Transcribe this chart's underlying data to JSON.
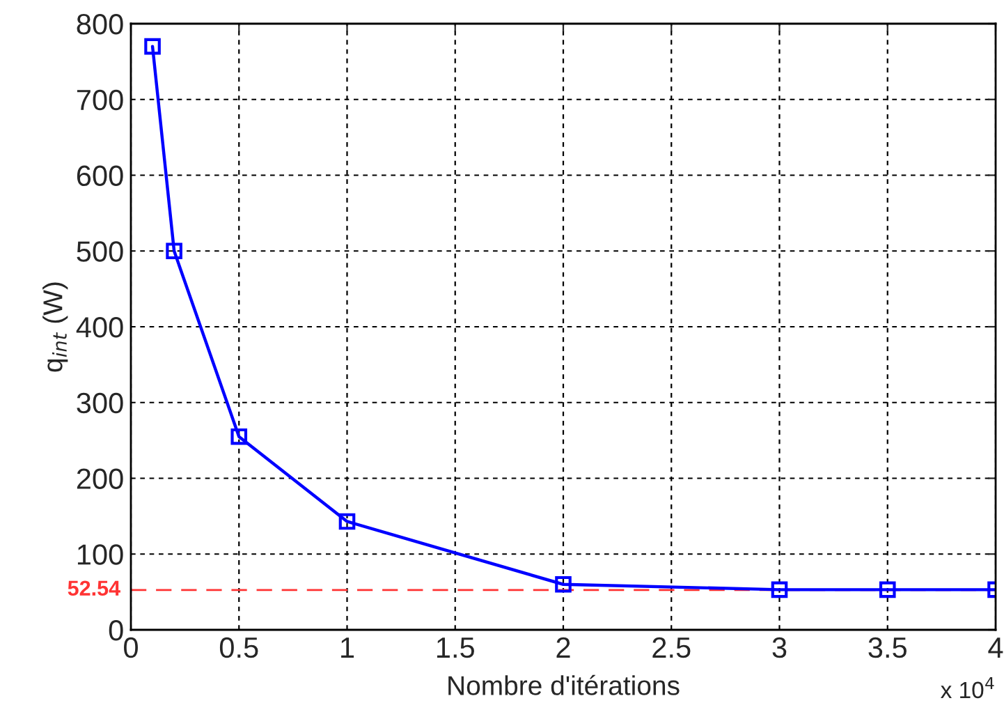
{
  "chart_data": {
    "type": "line",
    "xlabel": "Nombre d'itérations",
    "ylabel": "q$_{int}$ (W)",
    "x": [
      0.1,
      0.2,
      0.5,
      1,
      2,
      3,
      3.5,
      4
    ],
    "series": [
      {
        "color": "#0000ff",
        "values": [
          770,
          500,
          255,
          143,
          60,
          53,
          53,
          53
        ]
      }
    ],
    "xlim": [
      0,
      4
    ],
    "xticks": [
      0,
      0.5,
      1,
      1.5,
      2,
      2.5,
      3,
      3.5,
      4
    ],
    "ylim": [
      0,
      800
    ],
    "yticks": [
      0,
      100,
      200,
      300,
      400,
      500,
      600,
      700,
      800
    ],
    "ref_lines": [
      {
        "axis": "y",
        "value": 52.54,
        "label": "52.54",
        "color": "#ff3333",
        "line_style": "dashed"
      }
    ],
    "annotations": [
      "x 10$^{4}$"
    ],
    "grid": true,
    "marker": "square",
    "line_style": "solid"
  }
}
